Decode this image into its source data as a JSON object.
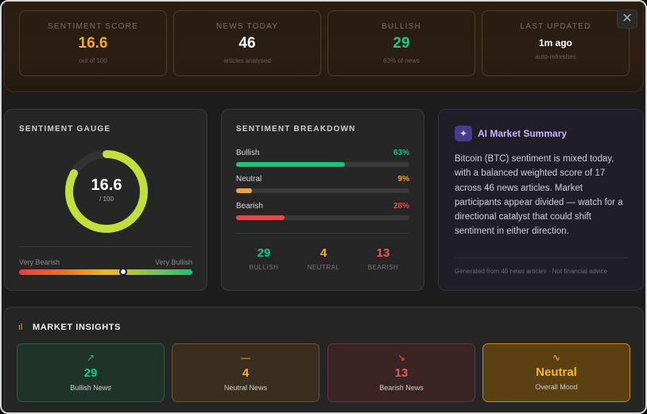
{
  "stats": [
    {
      "label": "SENTIMENT SCORE",
      "value": "16.6",
      "sub": "out of 100",
      "color": "#f5a623"
    },
    {
      "label": "NEWS TODAY",
      "value": "46",
      "sub": "articles analysed",
      "color": "#ffffff"
    },
    {
      "label": "BULLISH",
      "value": "29",
      "sub": "63% of news",
      "color": "#18c98a"
    },
    {
      "label": "LAST UPDATED",
      "value": "1m ago",
      "sub": "auto-refreshes",
      "color": "#ffffff"
    }
  ],
  "close_icon": "✕",
  "gauge": {
    "title": "SENTIMENT GAUGE",
    "score": "16.6",
    "denominator": "/ 100",
    "fill_fraction": 0.83,
    "color": "#c3e03a",
    "scale_left": "Very Bearish",
    "scale_right": "Very Bullish",
    "knob_fraction": 0.6
  },
  "breakdown": {
    "title": "SENTIMENT BREAKDOWN",
    "rows": [
      {
        "name": "Bullish",
        "pct": "63%",
        "fraction": 0.63,
        "color": "#16c47a"
      },
      {
        "name": "Neutral",
        "pct": "9%",
        "fraction": 0.09,
        "color": "#f5a623"
      },
      {
        "name": "Bearish",
        "pct": "28%",
        "fraction": 0.28,
        "color": "#f04545"
      }
    ],
    "counts": [
      {
        "n": "29",
        "label": "BULLISH",
        "color": "#18c98a"
      },
      {
        "n": "4",
        "label": "NEUTRAL",
        "color": "#f5b81c"
      },
      {
        "n": "13",
        "label": "BEARISH",
        "color": "#f25555"
      }
    ]
  },
  "ai": {
    "icon": "sparkle-icon",
    "title": "AI Market Summary",
    "text": "Bitcoin (BTC) sentiment is mixed today, with a balanced weighted score of 17 across 46 news articles. Market participants appear divided — watch for a directional catalyst that could shift sentiment in either direction.",
    "footer": "Generated from 46 news articles · Not financial advice"
  },
  "insights": {
    "title": "MARKET INSIGHTS",
    "cards": [
      {
        "icon": "↗",
        "icon_name": "trend-up-icon",
        "n": "29",
        "label": "Bullish News",
        "color": "#18c98a",
        "bg": "#1f3329",
        "border": "#2d5a44"
      },
      {
        "icon": "—",
        "icon_name": "dash-icon",
        "n": "4",
        "label": "Neutral News",
        "color": "#f5b81c",
        "bg": "#3a2e1e",
        "border": "#6a5430"
      },
      {
        "icon": "↘",
        "icon_name": "trend-down-icon",
        "n": "13",
        "label": "Bearish News",
        "color": "#f25555",
        "bg": "#3a2424",
        "border": "#653636"
      },
      {
        "icon": "∿",
        "icon_name": "pulse-icon",
        "n": "Neutral",
        "label": "Overall Mood",
        "color": "#f5b81c",
        "bg": "#5a3f10",
        "border": "#c58a1a"
      }
    ]
  }
}
